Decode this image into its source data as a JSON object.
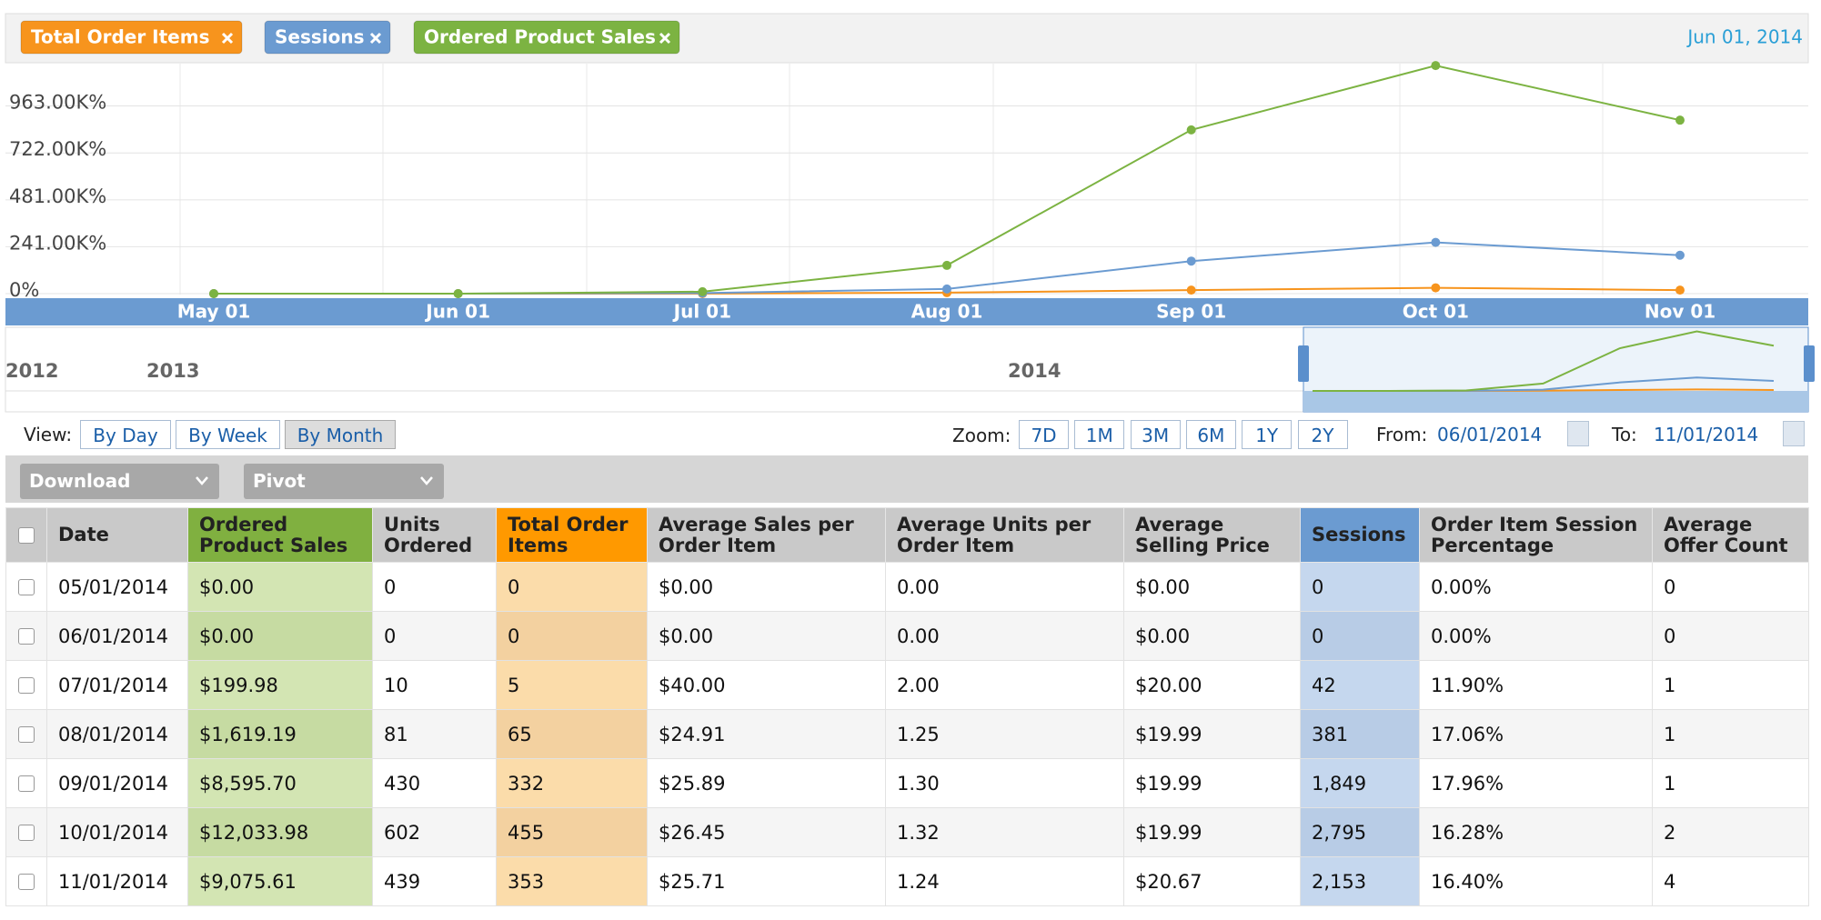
{
  "chart_data": {
    "type": "line",
    "date_label": "Jun 01, 2014",
    "categories": [
      "May 01",
      "Jun 01",
      "Jul 01",
      "Aug 01",
      "Sep 01",
      "Oct 01",
      "Nov 01"
    ],
    "series": [
      {
        "name": "Total Order Items",
        "color": "#f7941d",
        "values": [
          0,
          0,
          0,
          5000,
          18000,
          30000,
          18000
        ]
      },
      {
        "name": "Sessions",
        "color": "#6b9bd1",
        "values": [
          0,
          0,
          3000,
          24000,
          167000,
          263000,
          197000
        ]
      },
      {
        "name": "Ordered Product Sales",
        "color": "#7cb342",
        "values": [
          0,
          0,
          10000,
          145000,
          840000,
          1170000,
          890000
        ]
      }
    ],
    "ylim": [
      0,
      1180000
    ],
    "yticks": [
      {
        "value": 0,
        "label": "0%"
      },
      {
        "value": 241000,
        "label": "241.00K%"
      },
      {
        "value": 481000,
        "label": "481.00K%"
      },
      {
        "value": 722000,
        "label": "722.00K%"
      },
      {
        "value": 963000,
        "label": "963.00K%"
      }
    ],
    "grid": true,
    "navigator_labels": [
      "2012",
      "2013",
      "2014"
    ]
  },
  "controls": {
    "view_label": "View:",
    "view_buttons": [
      "By Day",
      "By Week",
      "By Month"
    ],
    "zoom_label": "Zoom:",
    "zoom_buttons": [
      "7D",
      "1M",
      "3M",
      "6M",
      "1Y",
      "2Y"
    ],
    "from_label": "From:",
    "from_date": "06/01/2014",
    "to_label": "To:",
    "to_date": "11/01/2014",
    "toolbar": [
      "Download",
      "Pivot"
    ]
  },
  "table": {
    "header": [
      "Date",
      "Ordered Product Sales",
      "Units Ordered",
      "Total Order Items",
      "Average Sales per Order Item",
      "Average Units per Order Item",
      "Average Selling Price",
      "Sessions",
      "Order Item Session Percentage",
      "Average Offer Count"
    ],
    "rows": [
      [
        "05/01/2014",
        "$0.00",
        "0",
        "0",
        "$0.00",
        "0.00",
        "$0.00",
        "0",
        "0.00%",
        "0"
      ],
      [
        "06/01/2014",
        "$0.00",
        "0",
        "0",
        "$0.00",
        "0.00",
        "$0.00",
        "0",
        "0.00%",
        "0"
      ],
      [
        "07/01/2014",
        "$199.98",
        "10",
        "5",
        "$40.00",
        "2.00",
        "$20.00",
        "42",
        "11.90%",
        "1"
      ],
      [
        "08/01/2014",
        "$1,619.19",
        "81",
        "65",
        "$24.91",
        "1.25",
        "$19.99",
        "381",
        "17.06%",
        "1"
      ],
      [
        "09/01/2014",
        "$8,595.70",
        "430",
        "332",
        "$25.89",
        "1.30",
        "$19.99",
        "1,849",
        "17.96%",
        "1"
      ],
      [
        "10/01/2014",
        "$12,033.98",
        "602",
        "455",
        "$26.45",
        "1.32",
        "$19.99",
        "2,795",
        "16.28%",
        "2"
      ],
      [
        "11/01/2014",
        "$9,075.61",
        "439",
        "353",
        "$25.71",
        "1.24",
        "$20.67",
        "2,153",
        "16.40%",
        "4"
      ]
    ]
  }
}
